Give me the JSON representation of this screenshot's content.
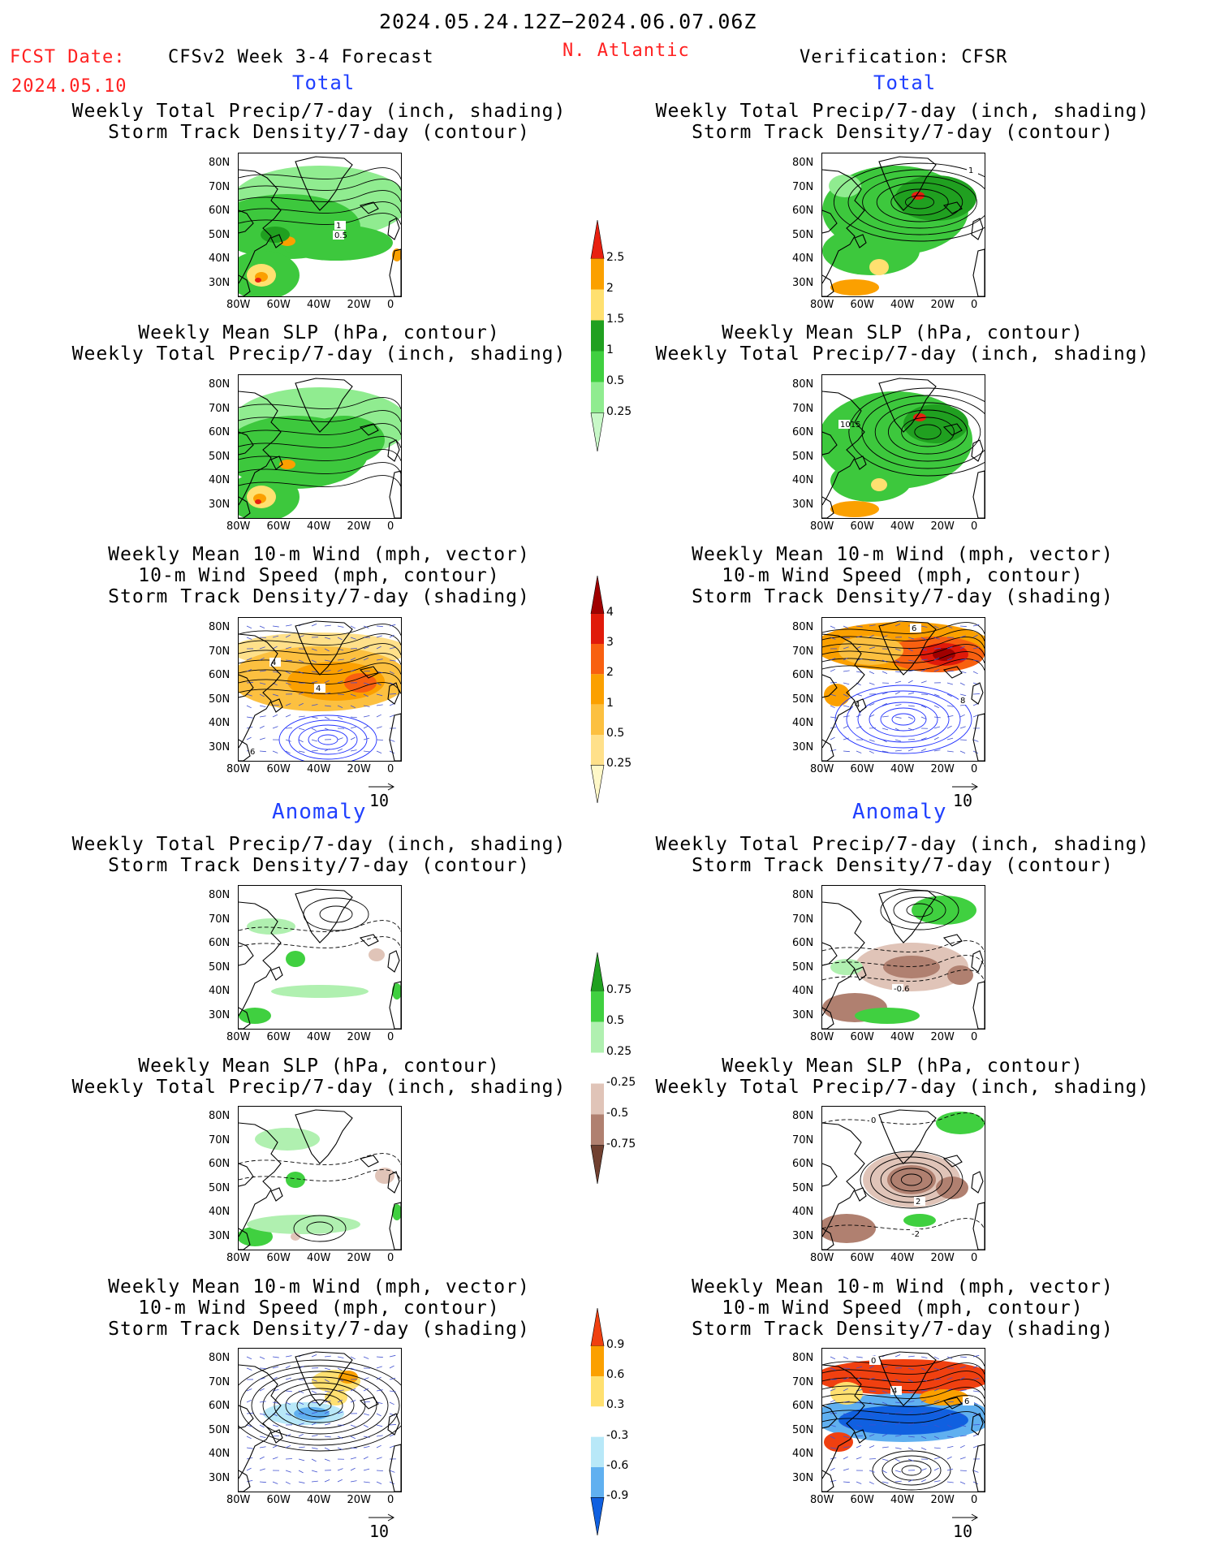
{
  "header": {
    "date_range": "2024.05.24.12Z−2024.06.07.06Z",
    "fcst_label": "FCST Date:",
    "fcst_date": "2024.05.10",
    "model": "CFSv2 Week 3-4 Forecast",
    "region": "N. Atlantic",
    "verification": "Verification: CFSR"
  },
  "sections": {
    "left_total": "Total",
    "right_total": "Total",
    "left_anomaly": "Anomaly",
    "right_anomaly": "Anomaly"
  },
  "panel_titles": {
    "precip_track": [
      "Weekly Total Precip/7-day (inch, shading)",
      "Storm Track Density/7-day (contour)"
    ],
    "slp_precip": [
      "Weekly Mean SLP (hPa, contour)",
      "Weekly Total Precip/7-day (inch, shading)"
    ],
    "wind": [
      "Weekly Mean 10-m Wind (mph, vector)",
      "10-m Wind Speed (mph, contour)",
      "Storm Track Density/7-day (shading)"
    ]
  },
  "axes": {
    "lat": [
      "80N",
      "70N",
      "60N",
      "50N",
      "40N",
      "30N"
    ],
    "lon": [
      "80W",
      "60W",
      "40W",
      "20W",
      "0"
    ]
  },
  "vector_ref": "10",
  "contour_labels": {
    "fc_track": [
      "1",
      "0.5"
    ],
    "fc_wind": [
      "4",
      "4",
      "6"
    ],
    "ob_track": [
      "1"
    ],
    "ob_slp": [
      "1015"
    ],
    "ob_wind": [
      "6",
      "4",
      "8"
    ],
    "oa_track": [
      "-0.6"
    ],
    "oa_slp": [
      "0",
      "2",
      "-2"
    ],
    "oa_wind": [
      "0",
      "4",
      "6"
    ]
  },
  "colorbars": {
    "precip_total": {
      "labels": [
        "2.5",
        "2",
        "1.5",
        "1",
        "0.5",
        "0.25"
      ],
      "colors": [
        "#e82010",
        "#fba000",
        "#ffe070",
        "#20a020",
        "#40d040",
        "#90ec90",
        "#c8f8c8"
      ]
    },
    "track_total": {
      "labels": [
        "4",
        "3",
        "2",
        "1",
        "0.5",
        "0.25"
      ],
      "colors": [
        "#a00000",
        "#e01a0a",
        "#f86010",
        "#fba000",
        "#fcc040",
        "#ffe08a",
        "#fff8c8"
      ]
    },
    "precip_anom": {
      "labels": [
        "0.75",
        "0.5",
        "0.25",
        "-0.25",
        "-0.5",
        "-0.75"
      ],
      "colors": [
        "#20a020",
        "#40d040",
        "#b0f0b0",
        "#ffffff",
        "#e0c4b8",
        "#b08070",
        "#704030"
      ]
    },
    "track_anom": {
      "labels": [
        "0.9",
        "0.6",
        "0.3",
        "-0.3",
        "-0.6",
        "-0.9"
      ],
      "colors": [
        "#f04010",
        "#fba000",
        "#ffe070",
        "#ffffff",
        "#b8e8f8",
        "#60b0f0",
        "#1060e0"
      ]
    }
  }
}
